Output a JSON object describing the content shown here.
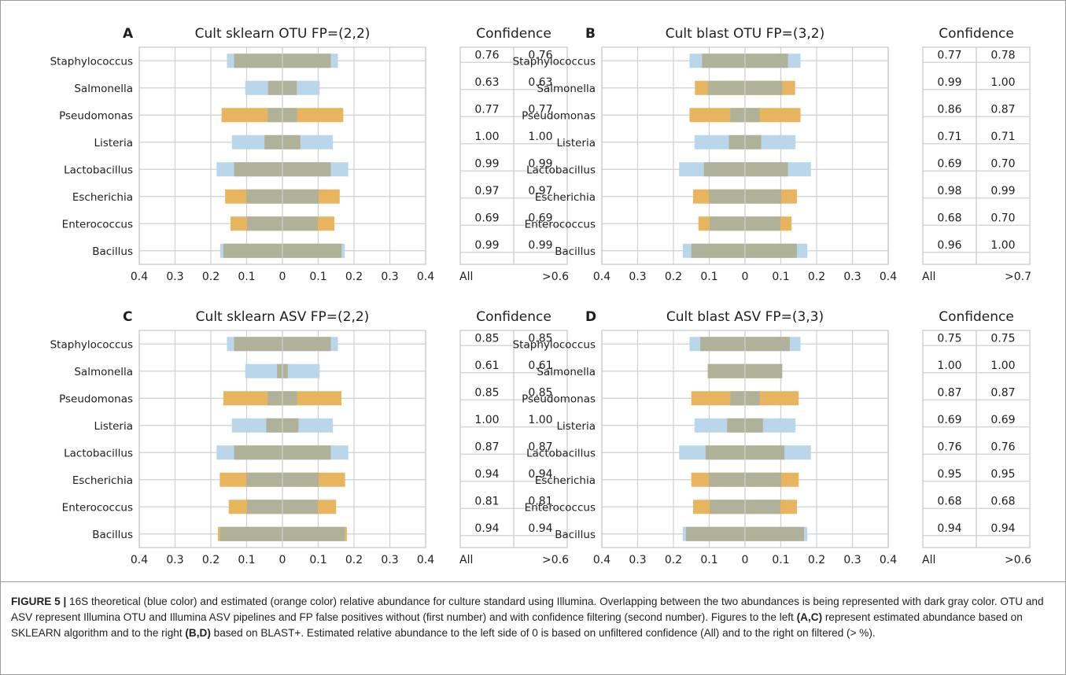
{
  "figure": {
    "caption_tag": "FIGURE 5 |",
    "caption_segments": [
      {
        "text": " 16S theoretical (blue color) and estimated (orange color) relative abundance for culture standard using Illumina. Overlapping between the two abundances is being represented with dark gray color. OTU and ASV represent Illumina OTU and Illumina ASV pipelines and FP false positives without (first number) and with confidence filtering (second number). Figures to the left ",
        "bold": false
      },
      {
        "text": "(A,C)",
        "bold": true
      },
      {
        "text": " represent estimated abundance based on SKLEARN algorithm and to the right ",
        "bold": false
      },
      {
        "text": "(B,D)",
        "bold": true
      },
      {
        "text": " based on BLAST+. Estimated relative abundance to the left side of 0 is based on unfiltered confidence (All) and to the right on filtered (> %).",
        "bold": false
      }
    ]
  },
  "colors": {
    "theoretical": "#b9d6ea",
    "estimated": "#e8b55e",
    "overlap": "#afb199",
    "grid": "#d0d0d0",
    "spine": "#c6c6c6"
  },
  "chart_data": [
    {
      "type": "bar",
      "panel": "A",
      "title": "Cult sklearn OTU FP=(2,2)",
      "categories": [
        "Staphylococcus",
        "Salmonella",
        "Pseudomonas",
        "Listeria",
        "Lactobacillus",
        "Escherichia",
        "Enterococcus",
        "Bacillus"
      ],
      "xticks": [
        "0.4",
        "0.3",
        "0.2",
        "0.1",
        "0",
        "0.1",
        "0.2",
        "0.3",
        "0.4"
      ],
      "xlim": [
        -0.4,
        0.4
      ],
      "theoretical": [
        0.155,
        0.104,
        0.041,
        0.141,
        0.184,
        0.101,
        0.099,
        0.174
      ],
      "estimated_all": [
        0.135,
        0.04,
        0.17,
        0.05,
        0.135,
        0.16,
        0.145,
        0.165
      ],
      "estimated_filtered": [
        0.135,
        0.04,
        0.17,
        0.05,
        0.135,
        0.16,
        0.145,
        0.165
      ],
      "confidence": {
        "title": "Confidence",
        "left_label": "All",
        "right_label": ">0.6",
        "all": [
          "0.76",
          "0.63",
          "0.77",
          "1.00",
          "0.99",
          "0.97",
          "0.69",
          "0.99"
        ],
        "filtered": [
          "0.76",
          "0.63",
          "0.77",
          "1.00",
          "0.99",
          "0.97",
          "0.69",
          "0.99"
        ]
      }
    },
    {
      "type": "bar",
      "panel": "B",
      "title": "Cult blast OTU FP=(3,2)",
      "categories": [
        "Staphylococcus",
        "Salmonella",
        "Pseudomonas",
        "Listeria",
        "Lactobacillus",
        "Escherichia",
        "Enterococcus",
        "Bacillus"
      ],
      "xticks": [
        "0.4",
        "0.3",
        "0.2",
        "0.1",
        "0",
        "0.1",
        "0.2",
        "0.3",
        "0.4"
      ],
      "xlim": [
        -0.4,
        0.4
      ],
      "theoretical": [
        0.155,
        0.104,
        0.041,
        0.141,
        0.184,
        0.101,
        0.099,
        0.174
      ],
      "estimated_all": [
        0.12,
        0.14,
        0.155,
        0.045,
        0.115,
        0.145,
        0.13,
        0.15
      ],
      "estimated_filtered": [
        0.12,
        0.14,
        0.155,
        0.045,
        0.12,
        0.145,
        0.13,
        0.145
      ],
      "confidence": {
        "title": "Confidence",
        "left_label": "All",
        "right_label": ">0.7",
        "all": [
          "0.77",
          "0.99",
          "0.86",
          "0.71",
          "0.69",
          "0.98",
          "0.68",
          "0.96"
        ],
        "filtered": [
          "0.78",
          "1.00",
          "0.87",
          "0.71",
          "0.70",
          "0.99",
          "0.70",
          "1.00"
        ]
      }
    },
    {
      "type": "bar",
      "panel": "C",
      "title": "Cult sklearn ASV FP=(2,2)",
      "categories": [
        "Staphylococcus",
        "Salmonella",
        "Pseudomonas",
        "Listeria",
        "Lactobacillus",
        "Escherichia",
        "Enterococcus",
        "Bacillus"
      ],
      "xticks": [
        "0.4",
        "0.3",
        "0.2",
        "0.1",
        "0",
        "0.1",
        "0.2",
        "0.3",
        "0.4"
      ],
      "xlim": [
        -0.4,
        0.4
      ],
      "theoretical": [
        0.155,
        0.104,
        0.041,
        0.141,
        0.184,
        0.101,
        0.099,
        0.174
      ],
      "estimated_all": [
        0.135,
        0.015,
        0.165,
        0.045,
        0.135,
        0.175,
        0.15,
        0.18
      ],
      "estimated_filtered": [
        0.135,
        0.015,
        0.165,
        0.045,
        0.135,
        0.175,
        0.15,
        0.18
      ],
      "confidence": {
        "title": "Confidence",
        "left_label": "All",
        "right_label": ">0.6",
        "all": [
          "0.85",
          "0.61",
          "0.85",
          "1.00",
          "0.87",
          "0.94",
          "0.81",
          "0.94"
        ],
        "filtered": [
          "0.85",
          "0.61",
          "0.85",
          "1.00",
          "0.87",
          "0.94",
          "0.81",
          "0.94"
        ]
      }
    },
    {
      "type": "bar",
      "panel": "D",
      "title": "Cult blast ASV FP=(3,3)",
      "categories": [
        "Staphylococcus",
        "Salmonella",
        "Pseudomonas",
        "Listeria",
        "Lactobacillus",
        "Escherichia",
        "Enterococcus",
        "Bacillus"
      ],
      "xticks": [
        "0.4",
        "0.3",
        "0.2",
        "0.1",
        "0",
        "0.1",
        "0.2",
        "0.3",
        "0.4"
      ],
      "xlim": [
        -0.4,
        0.4
      ],
      "theoretical": [
        0.155,
        0.104,
        0.041,
        0.141,
        0.184,
        0.101,
        0.099,
        0.174
      ],
      "estimated_all": [
        0.125,
        0.104,
        0.15,
        0.05,
        0.11,
        0.15,
        0.145,
        0.165
      ],
      "estimated_filtered": [
        0.125,
        0.104,
        0.15,
        0.05,
        0.11,
        0.15,
        0.145,
        0.165
      ],
      "confidence": {
        "title": "Confidence",
        "left_label": "All",
        "right_label": ">0.6",
        "all": [
          "0.75",
          "1.00",
          "0.87",
          "0.69",
          "0.76",
          "0.95",
          "0.68",
          "0.94"
        ],
        "filtered": [
          "0.75",
          "1.00",
          "0.87",
          "0.69",
          "0.76",
          "0.95",
          "0.68",
          "0.94"
        ]
      }
    }
  ]
}
